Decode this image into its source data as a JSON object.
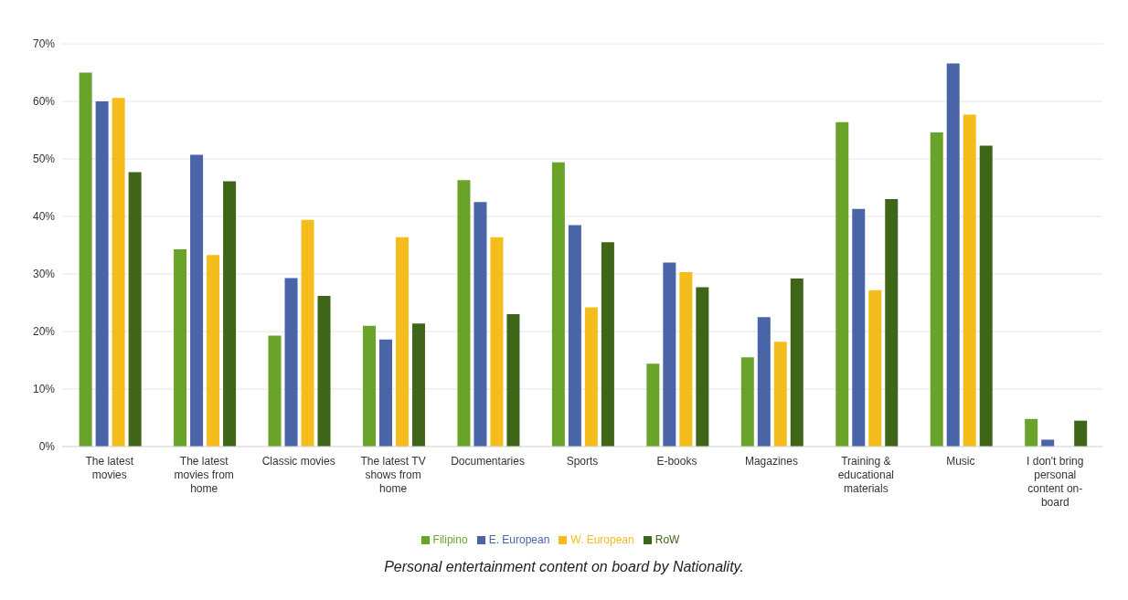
{
  "chart_data": {
    "type": "bar",
    "categories": [
      "The latest movies",
      "The latest movies from home",
      "Classic movies",
      "The latest TV shows from home",
      "Documentaries",
      "Sports",
      "E-books",
      "Magazines",
      "Training & educational materials",
      "Music",
      "I don't bring personal content on-board"
    ],
    "series": [
      {
        "name": "Filipino",
        "color": "#6aa329",
        "values": [
          65,
          34.3,
          19.3,
          21,
          46.3,
          49.4,
          14.4,
          15.5,
          56.4,
          54.6,
          4.8
        ]
      },
      {
        "name": "E. European",
        "color": "#4a64a8",
        "values": [
          60,
          50.7,
          29.3,
          18.6,
          42.5,
          38.5,
          32,
          22.5,
          41.3,
          66.6,
          1.2
        ]
      },
      {
        "name": "W. European",
        "color": "#f5bd1c",
        "values": [
          60.6,
          33.3,
          39.4,
          36.4,
          36.4,
          24.2,
          30.3,
          18.2,
          27.2,
          57.7,
          null
        ]
      },
      {
        "name": "RoW",
        "color": "#3f6518",
        "values": [
          47.7,
          46.1,
          26.2,
          21.4,
          23,
          35.5,
          27.7,
          29.2,
          43,
          52.3,
          4.5
        ]
      }
    ],
    "ylim": [
      0,
      70
    ],
    "yticks": [
      {
        "value": 0,
        "label": "0%"
      },
      {
        "value": 10,
        "label": "10%"
      },
      {
        "value": 20,
        "label": "20%"
      },
      {
        "value": 30,
        "label": "30%"
      },
      {
        "value": 40,
        "label": "40%"
      },
      {
        "value": 50,
        "label": "50%"
      },
      {
        "value": 60,
        "label": "60%"
      },
      {
        "value": 70,
        "label": "70%"
      }
    ],
    "grid": "y",
    "legend": "bottom",
    "annotations": [
      "Personal entertainment content on board by Nationality."
    ]
  }
}
